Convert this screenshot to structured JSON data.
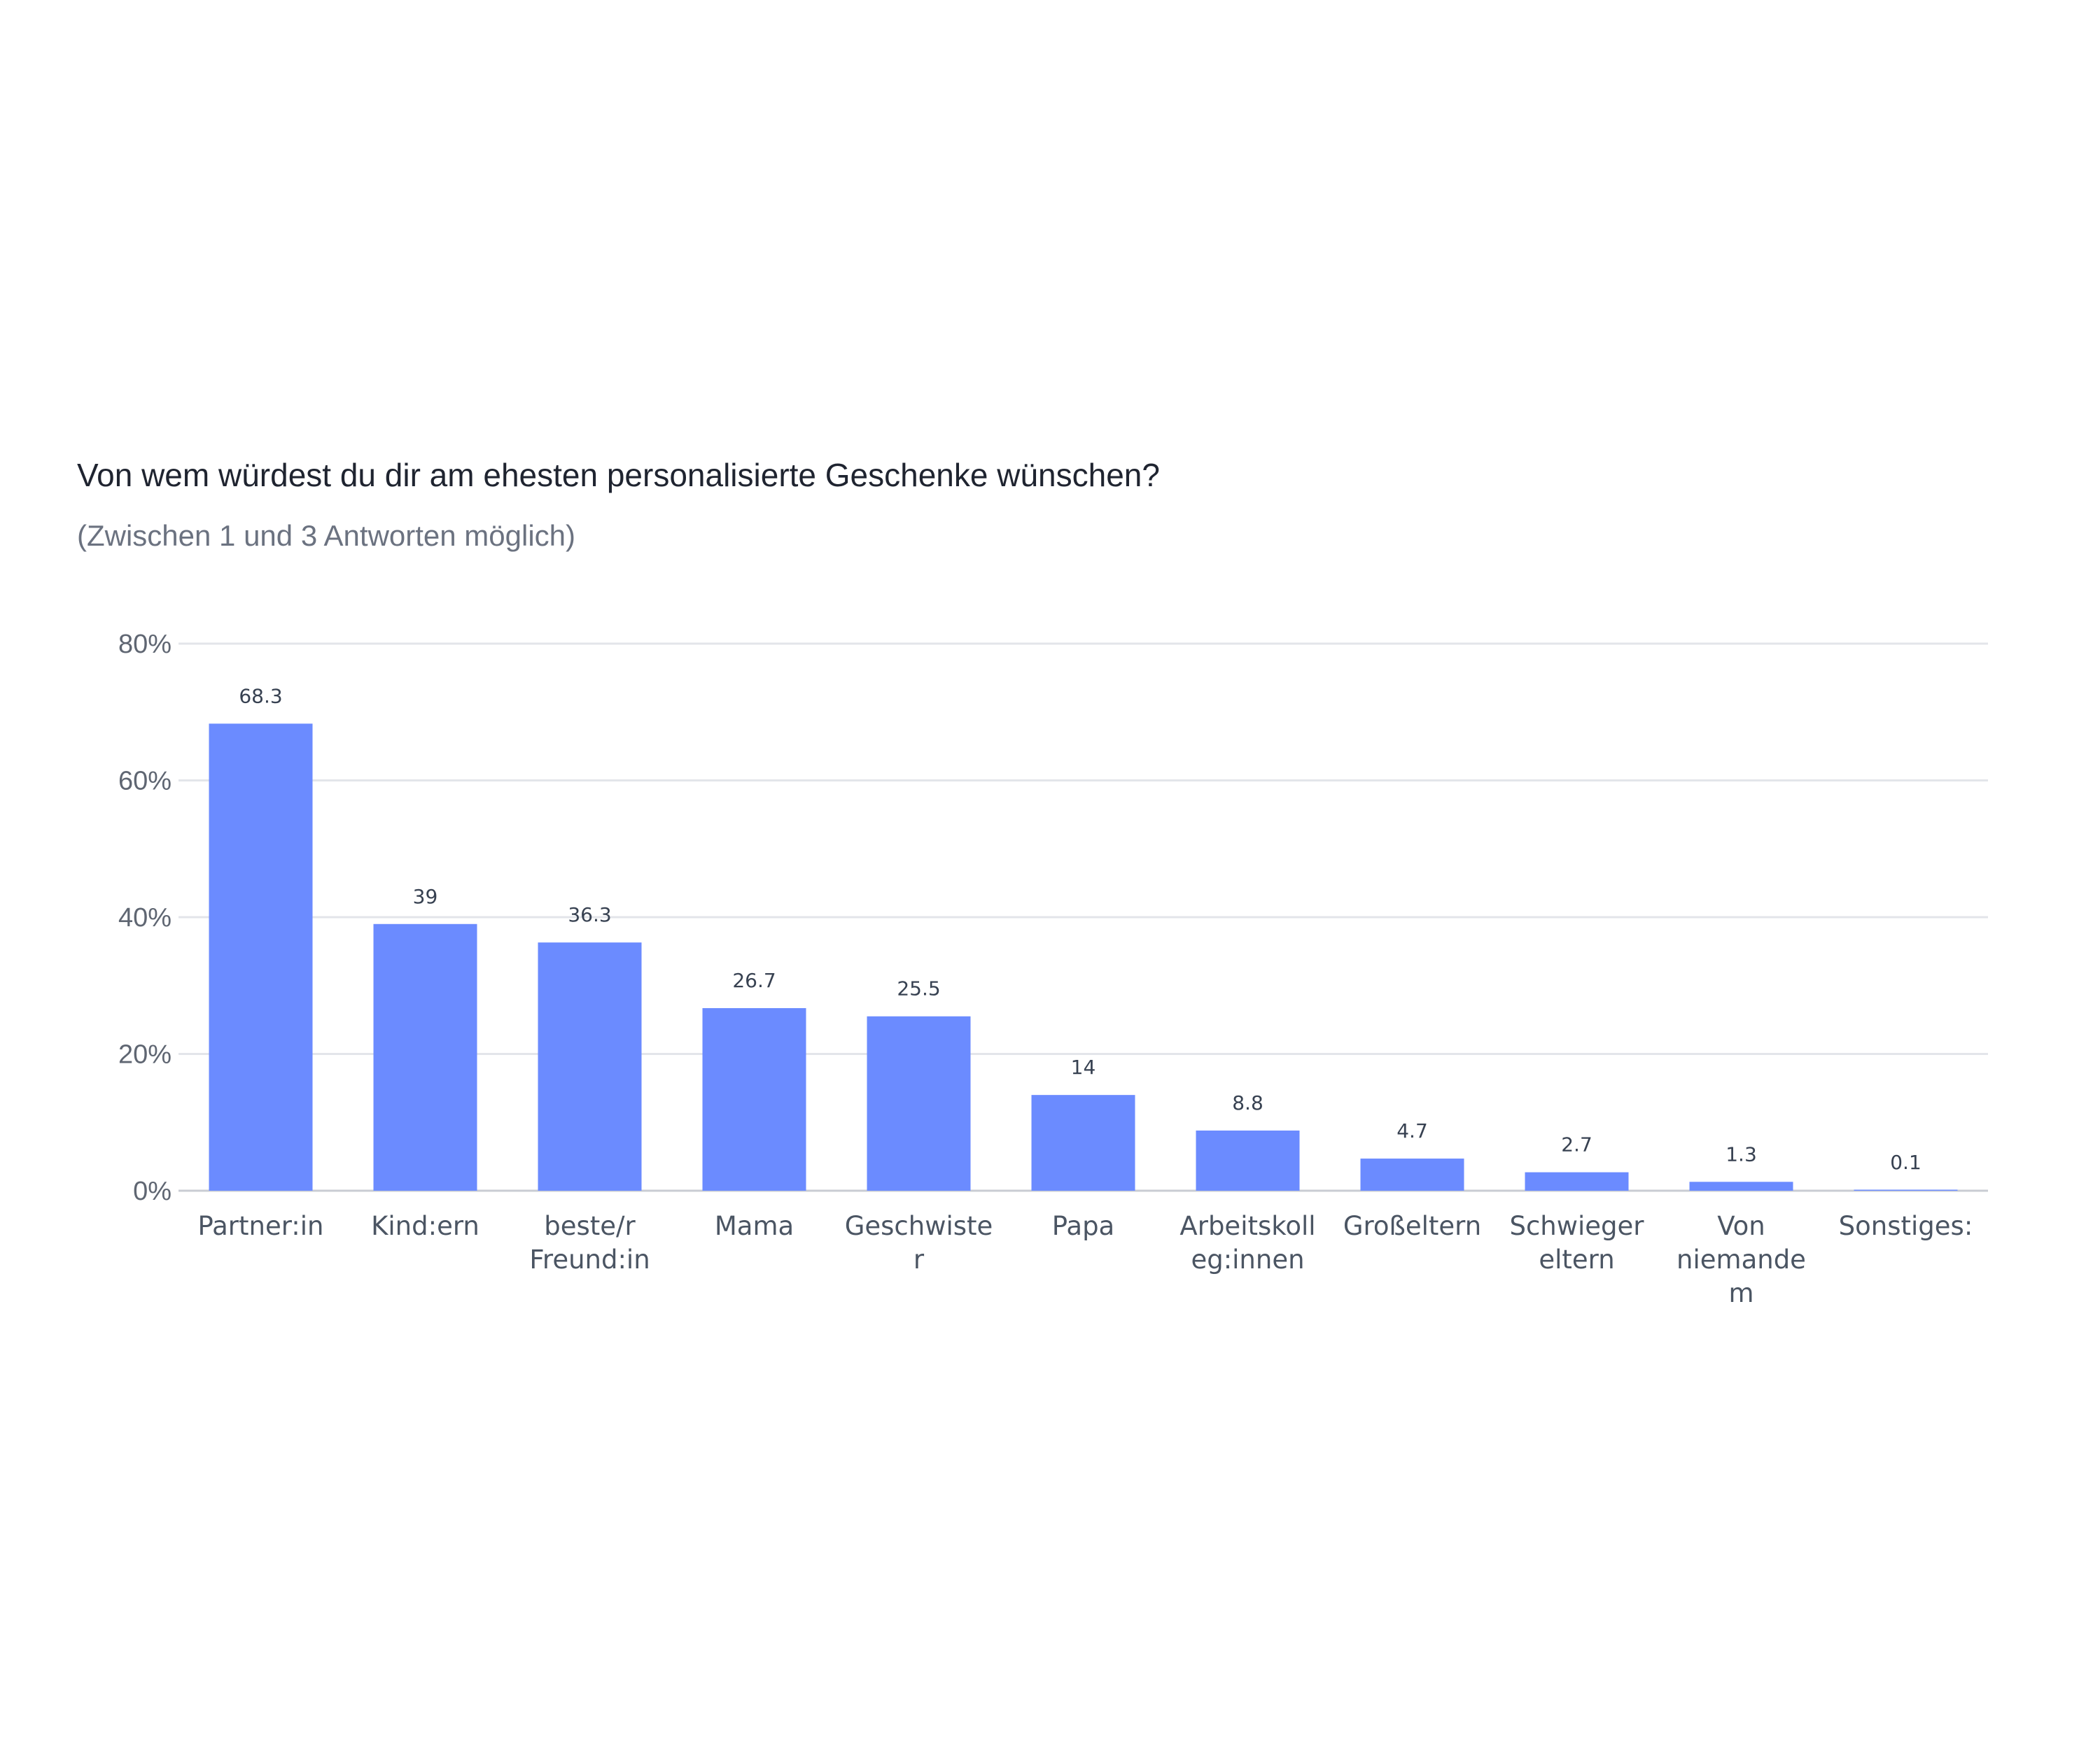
{
  "header": {
    "title": "Von wem würdest du dir am ehesten personalisierte Geschenke wünschen?",
    "subtitle": "(Zwischen 1 und 3 Antworten möglich)"
  },
  "colors": {
    "bar": "#6b8bff",
    "grid": "#e3e5ea",
    "axis": "#c9ccd3"
  },
  "chart_data": {
    "type": "bar",
    "title": "Von wem würdest du dir am ehesten personalisierte Geschenke wünschen?",
    "subtitle": "(Zwischen 1 und 3 Antworten möglich)",
    "categories": [
      [
        "Partner:in"
      ],
      [
        "Kind:ern"
      ],
      [
        "beste/r",
        "Freund:in"
      ],
      [
        "Mama"
      ],
      [
        "Geschwiste",
        "r"
      ],
      [
        "Papa"
      ],
      [
        "Arbeitskoll",
        "eg:innen"
      ],
      [
        "Großeltern"
      ],
      [
        "Schwieger",
        "eltern"
      ],
      [
        "Von",
        "niemande",
        "m"
      ],
      [
        "Sonstiges:"
      ]
    ],
    "values": [
      68.3,
      39,
      36.3,
      26.7,
      25.5,
      14,
      8.8,
      4.7,
      2.7,
      1.3,
      0.1
    ],
    "data_labels": [
      "68.3",
      "39",
      "36.3",
      "26.7",
      "25.5",
      "14",
      "8.8",
      "4.7",
      "2.7",
      "1.3",
      "0.1"
    ],
    "yticks": [
      0,
      20,
      40,
      60,
      80
    ],
    "ytick_labels": [
      "0%",
      "20%",
      "40%",
      "60%",
      "80%"
    ],
    "ylim": [
      0,
      80
    ],
    "xlabel": "",
    "ylabel": "",
    "grid": true,
    "legend": "none"
  }
}
